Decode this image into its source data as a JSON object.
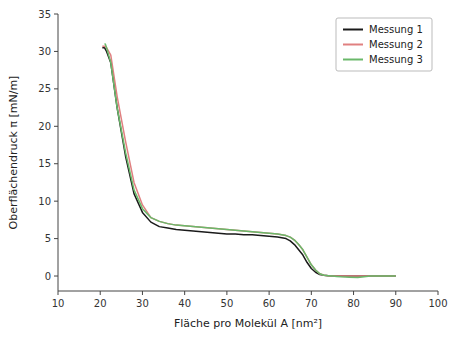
{
  "chart_data": {
    "type": "line",
    "xlabel": "Fläche pro Molekül A [nm²]",
    "ylabel": "Oberflächendruck π [mN/m]",
    "xlim": [
      10,
      100
    ],
    "ylim": [
      -2,
      35
    ],
    "xticks": [
      10,
      20,
      30,
      40,
      50,
      60,
      70,
      80,
      90,
      100
    ],
    "yticks": [
      0,
      5,
      10,
      15,
      20,
      25,
      30,
      35
    ],
    "legend": "upper right",
    "grid": false,
    "series": [
      {
        "name": "Messung 1",
        "color": "#1a1a1a",
        "x": [
          20.5,
          21.0,
          21.5,
          22.5,
          24,
          26,
          28,
          30,
          32,
          34,
          36,
          38,
          40,
          42,
          44,
          46,
          48,
          50,
          52,
          54,
          56,
          58,
          60,
          62,
          63,
          64,
          65,
          66,
          67,
          68,
          69,
          70,
          71,
          72,
          73,
          74,
          75,
          76,
          77,
          79,
          81,
          84,
          87,
          90
        ],
        "values": [
          30.5,
          30.5,
          30.0,
          28.5,
          22.5,
          16.0,
          11.0,
          8.5,
          7.2,
          6.6,
          6.4,
          6.2,
          6.1,
          6.0,
          5.9,
          5.8,
          5.7,
          5.6,
          5.6,
          5.5,
          5.5,
          5.4,
          5.3,
          5.2,
          5.1,
          5.0,
          4.7,
          4.2,
          3.5,
          2.8,
          1.8,
          1.0,
          0.5,
          0.2,
          0.1,
          0.05,
          0,
          0,
          0,
          0,
          0,
          0,
          0,
          0
        ]
      },
      {
        "name": "Messung 2",
        "color": "#e08080",
        "x": [
          20.5,
          21.0,
          21.5,
          22.5,
          24,
          26,
          28,
          30,
          32,
          34,
          36,
          38,
          40,
          42,
          44,
          46,
          48,
          50,
          52,
          54,
          56,
          58,
          60,
          62,
          63,
          64,
          65,
          66,
          67,
          68,
          69,
          70,
          71,
          72,
          73,
          74,
          75,
          76,
          77,
          79,
          81,
          84,
          87,
          90
        ],
        "values": [
          30.7,
          30.7,
          30.5,
          29.5,
          24.0,
          18.0,
          12.5,
          9.5,
          7.8,
          7.3,
          7.0,
          6.8,
          6.7,
          6.6,
          6.5,
          6.4,
          6.3,
          6.2,
          6.1,
          6.0,
          5.9,
          5.8,
          5.7,
          5.6,
          5.5,
          5.4,
          5.2,
          4.8,
          4.2,
          3.5,
          2.5,
          1.5,
          0.8,
          0.3,
          0.1,
          0.05,
          0,
          0,
          0,
          0,
          0,
          0,
          0,
          0
        ]
      },
      {
        "name": "Messung 3",
        "color": "#6ab86a",
        "x": [
          21.0,
          21.2,
          21.5,
          22.5,
          24,
          26,
          28,
          30,
          32,
          34,
          36,
          38,
          40,
          42,
          44,
          46,
          48,
          50,
          52,
          54,
          56,
          58,
          60,
          62,
          63,
          64,
          65,
          66,
          67,
          68,
          69,
          70,
          71,
          72,
          73,
          74,
          75,
          76,
          77,
          79,
          81,
          84,
          87,
          90
        ],
        "values": [
          31.0,
          31.0,
          30.5,
          28.5,
          22.5,
          16.5,
          11.5,
          9.0,
          7.8,
          7.3,
          7.0,
          6.8,
          6.7,
          6.6,
          6.5,
          6.4,
          6.3,
          6.2,
          6.1,
          6.0,
          5.9,
          5.8,
          5.7,
          5.6,
          5.5,
          5.4,
          5.2,
          4.8,
          4.2,
          3.5,
          2.5,
          1.5,
          0.8,
          0.3,
          0.1,
          0.05,
          0,
          -0.05,
          -0.1,
          -0.15,
          -0.2,
          0,
          0,
          0
        ]
      }
    ]
  }
}
